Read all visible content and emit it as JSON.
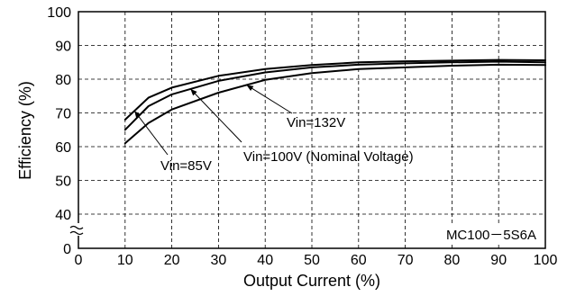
{
  "chart_data": {
    "type": "line",
    "title": "",
    "xlabel": "Output Current (%)",
    "ylabel": "Efficiency (%)",
    "xlim": [
      0,
      100
    ],
    "ylim": [
      0,
      100
    ],
    "x_ticks": [
      "0",
      "10",
      "20",
      "30",
      "40",
      "50",
      "60",
      "70",
      "80",
      "90",
      "100"
    ],
    "y_ticks": [
      "0",
      "40",
      "50",
      "60",
      "70",
      "80",
      "90",
      "100"
    ],
    "y_axis_break": true,
    "grid": true,
    "model_label": "MC100－5S6A",
    "series": [
      {
        "name": "Vin=85V",
        "x": [
          10,
          15,
          20,
          30,
          40,
          50,
          60,
          70,
          80,
          90,
          100
        ],
        "y": [
          68,
          74.5,
          77.5,
          81,
          83,
          84.2,
          85,
          85.3,
          85.5,
          85.7,
          85.6
        ]
      },
      {
        "name": "Vin=100V (Nominal Voltage)",
        "x": [
          10,
          15,
          20,
          30,
          40,
          50,
          60,
          70,
          80,
          90,
          100
        ],
        "y": [
          65,
          72,
          75.5,
          79.5,
          82,
          83.5,
          84.3,
          84.7,
          85,
          85.2,
          85
        ]
      },
      {
        "name": "Vin=132V",
        "x": [
          10,
          15,
          20,
          30,
          40,
          50,
          60,
          70,
          80,
          90,
          100
        ],
        "y": [
          61,
          67,
          71,
          76,
          79.8,
          81.8,
          83,
          83.5,
          84,
          84.3,
          84.2
        ]
      }
    ]
  }
}
